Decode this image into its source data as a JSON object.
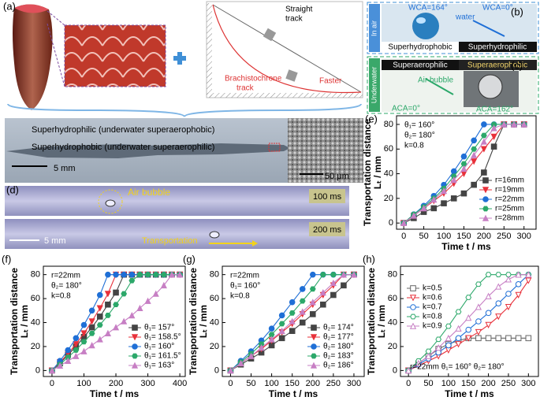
{
  "panel_labels": [
    "(a)",
    "(b)",
    "(c)",
    "(d)",
    "(e)",
    "(f)",
    "(g)",
    "(h)"
  ],
  "panel_a": {
    "straight_track": [
      "Straight",
      "track"
    ],
    "faster": "Faster",
    "brachistochrone": [
      "Brachistochrone",
      "track"
    ]
  },
  "panel_b": {
    "side": "In air",
    "wca_left": "WCA=164°",
    "water": "water",
    "wca_right": "WCA=0°",
    "left": "Superhydrophobic",
    "right": "Superhydrophilic"
  },
  "panel_c": {
    "side": "Underwater",
    "left": "Superaerophilic",
    "right": "Superaerophobic",
    "air_bubble": "Air bubble",
    "aca_left": "ACA=0°",
    "aca_right": "ACA=162°"
  },
  "photo": {
    "top": "Superhydrophilic (underwater superaerophobic)",
    "bottom": "Superhydrophobic (underwater superaerophilic)",
    "scale": "5 mm",
    "scale_sem": "50 μm"
  },
  "panel_d": {
    "air_bubble": "Air bubble",
    "t1": "100 ms",
    "t2": "200 ms",
    "scale": "5 mm",
    "transport": "Transportation"
  },
  "chart_data": [
    {
      "type": "line",
      "x_label": "Time t / ms",
      "y_label": [
        "Transportation distance",
        "Lₜ / mm"
      ],
      "x": [
        0,
        25,
        50,
        75,
        100,
        125,
        150,
        175,
        200,
        225,
        250,
        275,
        300
      ],
      "xlim": [
        -18,
        330
      ],
      "xticks": [
        0,
        50,
        100,
        150,
        200,
        250,
        300
      ],
      "ylim": [
        -5,
        87
      ],
      "yticks": [
        0,
        20,
        40,
        60,
        80
      ],
      "annotations": [
        "θ₁= 160°",
        "θ₂= 180°",
        "k=0.8"
      ],
      "annotation_corner": "top-left",
      "legend_corner": "bottom-right",
      "filled": true,
      "series": [
        {
          "name": "r=16mm",
          "color": "#444444",
          "marker": "square",
          "values": [
            0,
            4,
            9,
            12,
            16,
            20,
            24,
            31,
            41,
            62,
            80,
            80,
            80
          ]
        },
        {
          "name": "r=19mm",
          "color": "#e8303a",
          "marker": "triangle-down",
          "values": [
            0,
            6,
            12,
            18,
            24,
            32,
            40,
            50,
            60,
            70,
            80,
            80,
            80
          ]
        },
        {
          "name": "r=22mm",
          "color": "#1f6fd6",
          "marker": "circle",
          "values": [
            0,
            7,
            14,
            22,
            31,
            42,
            54,
            67,
            80,
            80,
            80,
            80,
            80
          ]
        },
        {
          "name": "r=25mm",
          "color": "#2ca86a",
          "marker": "hexagon",
          "values": [
            0,
            7,
            13,
            20,
            28,
            38,
            48,
            60,
            71,
            80,
            80,
            80,
            80
          ]
        },
        {
          "name": "r=28mm",
          "color": "#c77fc4",
          "marker": "triangle-up",
          "values": [
            0,
            6,
            12,
            19,
            26,
            35,
            44,
            55,
            66,
            77,
            80,
            80,
            80
          ]
        }
      ]
    },
    {
      "type": "line",
      "x_label": "Time t / ms",
      "y_label": [
        "Transportation distance",
        "Lₜ / mm"
      ],
      "x": [
        0,
        25,
        50,
        75,
        100,
        125,
        150,
        175,
        200,
        225,
        250,
        275,
        300,
        325,
        350,
        375,
        400
      ],
      "xlim": [
        -27,
        417
      ],
      "xticks": [
        0,
        100,
        200,
        300,
        400
      ],
      "ylim": [
        -5,
        87
      ],
      "yticks": [
        0,
        20,
        40,
        60,
        80
      ],
      "annotations": [
        "r=22mm",
        "θ₂= 180°",
        "k=0.8"
      ],
      "annotation_corner": "top-left",
      "legend_corner": "bottom-right",
      "filled": true,
      "series": [
        {
          "name": "θ₁= 157°",
          "color": "#444444",
          "marker": "square",
          "values": [
            0,
            6,
            13,
            20,
            28,
            36,
            45,
            55,
            65,
            80,
            80,
            80,
            80,
            80,
            80,
            80,
            80
          ]
        },
        {
          "name": "θ₁= 158.5°",
          "color": "#e8303a",
          "marker": "triangle-down",
          "values": [
            0,
            7,
            14,
            22,
            31,
            41,
            52,
            64,
            80,
            80,
            80,
            80,
            80,
            80,
            80,
            80,
            80
          ]
        },
        {
          "name": "θ₁= 160°",
          "color": "#1f6fd6",
          "marker": "circle",
          "values": [
            0,
            8,
            17,
            27,
            38,
            50,
            63,
            80,
            80,
            80,
            80,
            80,
            80,
            80,
            80,
            80,
            80
          ]
        },
        {
          "name": "θ₁= 161.5°",
          "color": "#2ca86a",
          "marker": "hexagon",
          "values": [
            0,
            5,
            11,
            17,
            24,
            31,
            38,
            46,
            55,
            64,
            75,
            80,
            80,
            80,
            80,
            80,
            80
          ]
        },
        {
          "name": "θ₁= 163°",
          "color": "#c77fc4",
          "marker": "triangle-up",
          "values": [
            0,
            4,
            8,
            12,
            16,
            21,
            26,
            31,
            36,
            41,
            46,
            52,
            58,
            64,
            71,
            80,
            80
          ]
        }
      ]
    },
    {
      "type": "line",
      "x_label": "Time t / ms",
      "y_label": [
        "Transportation distance",
        "Lₜ / mm"
      ],
      "x": [
        0,
        25,
        50,
        75,
        100,
        125,
        150,
        175,
        200,
        225,
        250,
        275,
        300
      ],
      "xlim": [
        -20,
        325
      ],
      "xticks": [
        0,
        50,
        100,
        150,
        200,
        250,
        300
      ],
      "ylim": [
        -5,
        87
      ],
      "yticks": [
        0,
        20,
        40,
        60,
        80
      ],
      "annotations": [
        "r=22mm",
        "θ₁= 160°",
        "k=0.8"
      ],
      "annotation_corner": "top-left",
      "legend_corner": "bottom-right",
      "filled": true,
      "series": [
        {
          "name": "θ₂= 174°",
          "color": "#444444",
          "marker": "square",
          "values": [
            0,
            5,
            10,
            15,
            21,
            27,
            33,
            40,
            47,
            55,
            63,
            71,
            80
          ]
        },
        {
          "name": "θ₂= 177°",
          "color": "#e8303a",
          "marker": "triangle-down",
          "values": [
            0,
            6,
            12,
            18,
            25,
            32,
            39,
            47,
            55,
            63,
            71,
            80,
            80
          ]
        },
        {
          "name": "θ₂= 180°",
          "color": "#1f6fd6",
          "marker": "circle",
          "values": [
            0,
            8,
            16,
            25,
            35,
            46,
            57,
            68,
            80,
            80,
            80,
            80,
            80
          ]
        },
        {
          "name": "θ₂= 183°",
          "color": "#2ca86a",
          "marker": "hexagon",
          "values": [
            0,
            7,
            14,
            22,
            30,
            39,
            48,
            58,
            68,
            80,
            80,
            80,
            80
          ]
        },
        {
          "name": "θ₂= 186°",
          "color": "#c77fc4",
          "marker": "triangle-up",
          "values": [
            0,
            6,
            12,
            19,
            26,
            33,
            41,
            49,
            57,
            65,
            73,
            80,
            80
          ]
        }
      ]
    },
    {
      "type": "line",
      "x_label": "Time t / ms",
      "y_label": [
        "Transportation distance",
        "Lₜ / mm"
      ],
      "x": [
        0,
        25,
        50,
        75,
        100,
        125,
        150,
        175,
        200,
        225,
        250,
        275,
        300
      ],
      "xlim": [
        -20,
        325
      ],
      "xticks": [
        0,
        50,
        100,
        150,
        200,
        250,
        300
      ],
      "ylim": [
        -5,
        87
      ],
      "yticks": [
        0,
        20,
        40,
        60,
        80
      ],
      "annotations": [
        "r=22mm  θ₁= 160°  θ₂= 180°"
      ],
      "annotation_corner": "bottom",
      "legend_corner": "top-left",
      "filled": false,
      "series": [
        {
          "name": "k=0.5",
          "color": "#666666",
          "marker": "square",
          "values": [
            0,
            6,
            12,
            18,
            22,
            25,
            27,
            27,
            27,
            27,
            27,
            27,
            27
          ]
        },
        {
          "name": "k=0.6",
          "color": "#e8303a",
          "marker": "triangle-down",
          "values": [
            0,
            4,
            8,
            12,
            17,
            22,
            27,
            32,
            38,
            45,
            53,
            63,
            75
          ]
        },
        {
          "name": "k=0.7",
          "color": "#1f6fd6",
          "marker": "circle",
          "values": [
            0,
            5,
            10,
            15,
            21,
            27,
            34,
            41,
            48,
            56,
            64,
            72,
            80
          ]
        },
        {
          "name": "k=0.8",
          "color": "#2ca86a",
          "marker": "hexagon",
          "values": [
            0,
            8,
            16,
            26,
            37,
            49,
            61,
            72,
            80,
            80,
            80,
            80,
            80
          ]
        },
        {
          "name": "k=0.9",
          "color": "#c77fc4",
          "marker": "triangle-up",
          "values": [
            0,
            6,
            12,
            19,
            27,
            35,
            44,
            53,
            62,
            70,
            76,
            80,
            80
          ]
        }
      ]
    }
  ]
}
